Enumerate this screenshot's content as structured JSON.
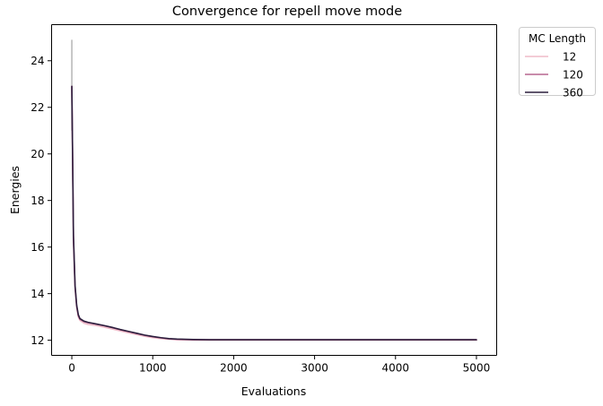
{
  "chart_data": {
    "type": "line",
    "title": "Convergence for repell move mode",
    "xlabel": "Evaluations",
    "ylabel": "Energies",
    "xlim": [
      -250,
      5250
    ],
    "ylim": [
      11.35,
      25.55
    ],
    "xticks": [
      0,
      1000,
      2000,
      3000,
      4000,
      5000
    ],
    "yticks": [
      12,
      14,
      16,
      18,
      20,
      22,
      24
    ],
    "grid": false,
    "legend": {
      "title": "MC Length",
      "placement": "outside-top-right"
    },
    "series": [
      {
        "name": "12",
        "color": "#efbcc9",
        "x": [
          0,
          10,
          20,
          40,
          60,
          80,
          100,
          150,
          200,
          300,
          400,
          500,
          600,
          700,
          800,
          900,
          1000,
          1100,
          1200,
          1300,
          1400,
          1500,
          1700,
          2000,
          3000,
          4000,
          5000
        ],
        "y": [
          22.9,
          19.5,
          16.2,
          14.2,
          13.4,
          13.0,
          12.85,
          12.73,
          12.68,
          12.63,
          12.56,
          12.48,
          12.4,
          12.32,
          12.24,
          12.17,
          12.11,
          12.07,
          12.04,
          12.02,
          12.01,
          12.0,
          12.0,
          12.0,
          12.0,
          12.0,
          12.0
        ]
      },
      {
        "name": "120",
        "color": "#b7668f",
        "x": [
          0,
          10,
          20,
          40,
          60,
          80,
          100,
          150,
          200,
          300,
          400,
          500,
          600,
          700,
          800,
          900,
          1000,
          1100,
          1200,
          1300,
          1400,
          1500,
          1700,
          2000,
          3000,
          4000,
          5000
        ],
        "y": [
          22.9,
          19.7,
          16.4,
          14.3,
          13.45,
          13.05,
          12.9,
          12.8,
          12.75,
          12.69,
          12.62,
          12.54,
          12.45,
          12.37,
          12.29,
          12.21,
          12.15,
          12.1,
          12.06,
          12.04,
          12.03,
          12.02,
          12.02,
          12.02,
          12.02,
          12.02,
          12.02
        ]
      },
      {
        "name": "360",
        "color": "#2c1e3d",
        "x": [
          0,
          10,
          20,
          40,
          60,
          80,
          100,
          150,
          200,
          300,
          400,
          500,
          600,
          700,
          800,
          900,
          1000,
          1100,
          1200,
          1300,
          1400,
          1500,
          1700,
          2000,
          3000,
          4000,
          5000
        ],
        "y": [
          22.9,
          19.8,
          16.5,
          14.35,
          13.5,
          13.1,
          12.93,
          12.82,
          12.77,
          12.7,
          12.63,
          12.55,
          12.46,
          12.38,
          12.3,
          12.22,
          12.16,
          12.11,
          12.07,
          12.05,
          12.04,
          12.03,
          12.02,
          12.02,
          12.02,
          12.02,
          12.02
        ]
      }
    ],
    "error_band": {
      "x": 0,
      "y_low": 21.0,
      "y_high": 24.9,
      "color": "#b5b5b5"
    }
  }
}
